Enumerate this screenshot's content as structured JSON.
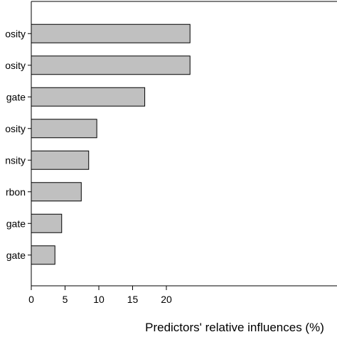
{
  "chart_data": {
    "type": "bar",
    "orientation": "horizontal",
    "categories": [
      "osity",
      "osity",
      "gate",
      "osity",
      "nsity",
      "rbon",
      "gate",
      "gate"
    ],
    "values": [
      23.5,
      23.5,
      16.8,
      9.7,
      8.5,
      7.4,
      4.5,
      3.5
    ],
    "xlabel": "Predictors' relative influences (%)",
    "ylabel": "",
    "title": "",
    "xlim": [
      0,
      22.8
    ],
    "xticks": [
      "0",
      "5",
      "10",
      "15",
      "20"
    ],
    "grid": false,
    "legend": "none",
    "colors": {
      "bar_fill": "#c0c0c0",
      "bar_stroke": "#000000",
      "axis": "#000000"
    }
  }
}
